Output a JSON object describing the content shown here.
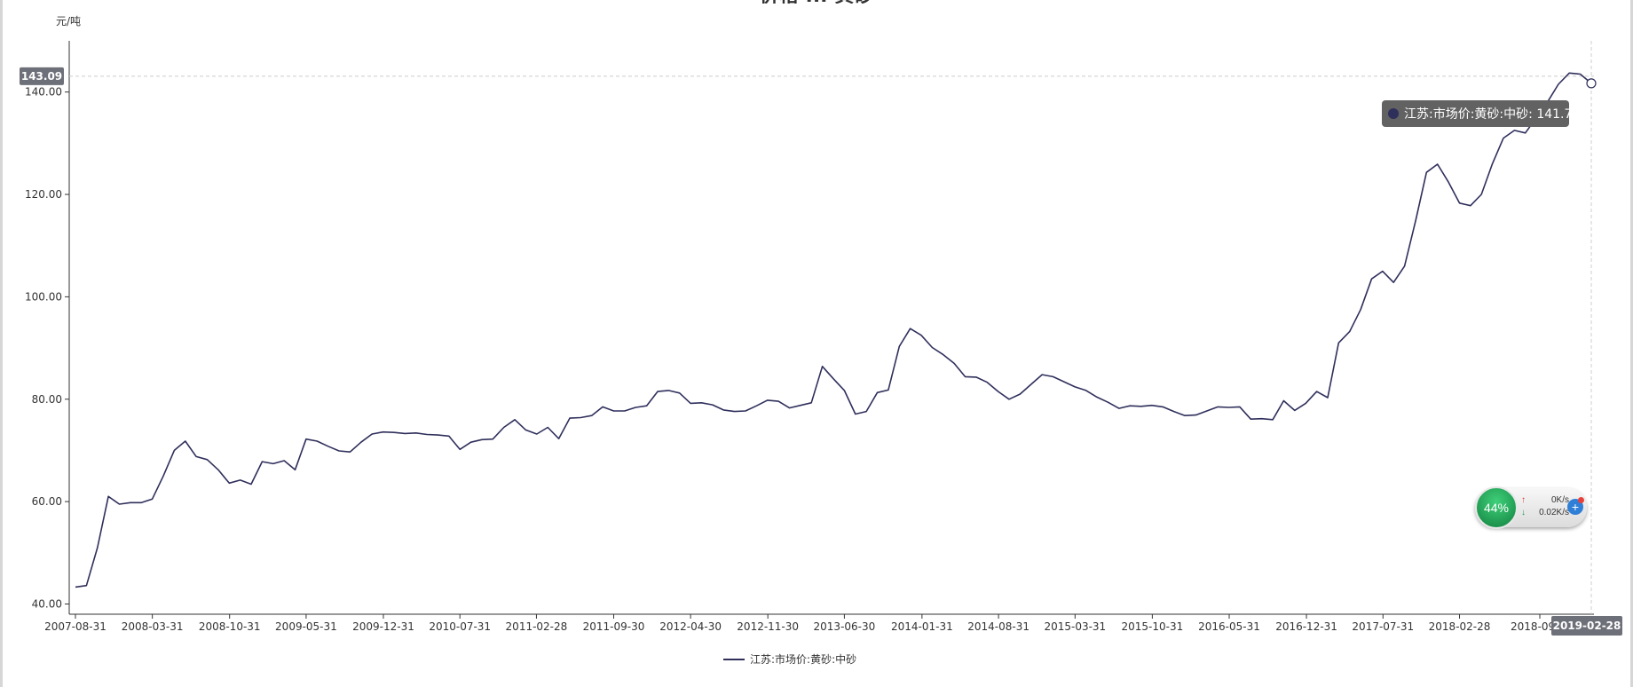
{
  "chart_title_partial": "价格 ... 黄砂",
  "chart_data": {
    "type": "line",
    "title": "",
    "xlabel": "",
    "ylabel": "元/吨",
    "ylim": [
      38,
      150
    ],
    "x_range": [
      "2007-08-31",
      "2019-02-28"
    ],
    "y_ticks": [
      "40.00",
      "60.00",
      "80.00",
      "100.00",
      "120.00",
      "140.00"
    ],
    "x_ticks": [
      "2007-08-31",
      "2008-03-31",
      "2008-10-31",
      "2009-05-31",
      "2009-12-31",
      "2010-07-31",
      "2011-02-28",
      "2011-09-30",
      "2012-04-30",
      "2012-11-30",
      "2013-06-30",
      "2014-01-31",
      "2014-08-31",
      "2015-03-31",
      "2015-10-31",
      "2016-05-31",
      "2016-12-31",
      "2017-07-31",
      "2018-02-28",
      "2018-09-..."
    ],
    "legend_position": "bottom-center",
    "grid": false,
    "series": [
      {
        "name": "江苏:市场价:黄砂:中砂",
        "color": "#2f2f5c",
        "values": [
          43.3,
          43.6,
          51.0,
          61.0,
          59.5,
          59.8,
          59.8,
          60.5,
          65.0,
          70.0,
          71.8,
          68.8,
          68.2,
          66.2,
          63.6,
          64.2,
          63.4,
          67.8,
          67.4,
          68.0,
          66.2,
          72.2,
          71.8,
          70.8,
          69.9,
          69.7,
          71.6,
          73.2,
          73.6,
          73.5,
          73.3,
          73.4,
          73.1,
          73.0,
          72.8,
          70.2,
          71.6,
          72.1,
          72.2,
          74.5,
          76.0,
          74.0,
          73.2,
          74.5,
          72.3,
          76.3,
          76.4,
          76.8,
          78.5,
          77.7,
          77.7,
          78.4,
          78.7,
          81.5,
          81.7,
          81.2,
          79.2,
          79.3,
          78.9,
          77.9,
          77.6,
          77.7,
          78.7,
          79.8,
          79.6,
          78.3,
          78.8,
          79.3,
          86.4,
          84.0,
          81.7,
          77.1,
          77.6,
          81.3,
          81.8,
          90.3,
          93.8,
          92.5,
          90.1,
          88.7,
          87.0,
          84.4,
          84.3,
          83.3,
          81.5,
          80.0,
          81.0,
          82.9,
          84.8,
          84.4,
          83.4,
          82.4,
          81.7,
          80.4,
          79.4,
          78.2,
          78.7,
          78.6,
          78.8,
          78.5,
          77.6,
          76.8,
          76.9,
          77.7,
          78.5,
          78.4,
          78.5,
          76.1,
          76.2,
          76.0,
          79.7,
          77.8,
          79.2,
          81.5,
          80.3,
          91.0,
          93.2,
          97.5,
          103.5,
          105.0,
          102.8,
          106.0,
          114.8,
          124.3,
          125.9,
          122.4,
          118.3,
          117.8,
          120.0,
          126.0,
          131.0,
          132.5,
          132.0,
          135.0,
          138.0,
          141.5,
          143.7,
          143.5,
          141.7
        ]
      }
    ]
  },
  "axis_pointer": {
    "y_value": "143.09",
    "x_value": "2019-02-28"
  },
  "tooltip": {
    "text": "江苏:市场价:黄砂:中砂: 141.7",
    "value": 141.7,
    "date": "2019-02-28",
    "bg_color": "#626262"
  },
  "colors": {
    "line": "#2f2f5c",
    "axis": "#333333",
    "pointer_label_bg": "#6e7079"
  },
  "net_widget": {
    "percent": "44%",
    "upload": "0K/s",
    "download": "0.02K/s",
    "up_icon": "arrow-up-icon",
    "down_icon": "arrow-down-icon",
    "plus_icon": "plus-icon"
  }
}
